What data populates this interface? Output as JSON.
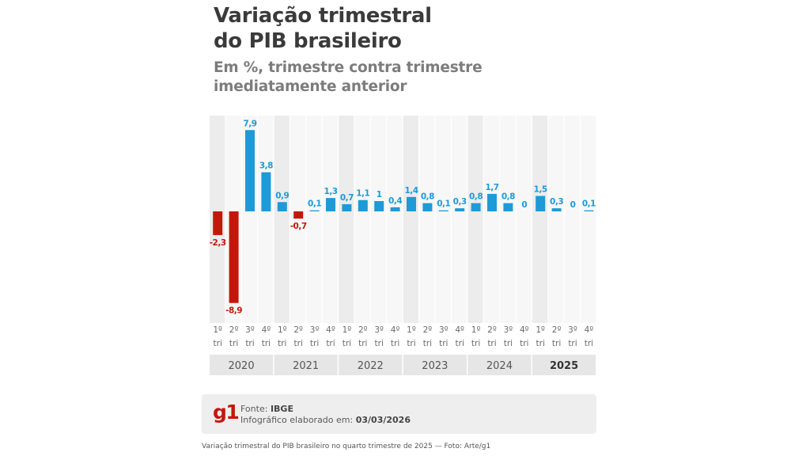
{
  "title_lines": [
    "Variação trimestral",
    "do PIB brasileiro"
  ],
  "subtitle_lines": [
    "Em %, trimestre contra trimestre",
    "imediatamente anterior"
  ],
  "colors": {
    "positive": "#1e9ad6",
    "negative": "#c4170c",
    "title": "#3a3a3a",
    "subtitle": "#7c7c7c"
  },
  "chart_data": {
    "type": "bar",
    "title": "Variação trimestral do PIB brasileiro",
    "subtitle": "Em %, trimestre contra trimestre imediatamente anterior",
    "quarter_labels": [
      "1º tri",
      "2º tri",
      "3º tri",
      "4º tri"
    ],
    "years": [
      "2020",
      "2021",
      "2022",
      "2023",
      "2024",
      "2025"
    ],
    "highlight_year": "2025",
    "categories": [
      "1º tri 2020",
      "2º tri 2020",
      "3º tri 2020",
      "4º tri 2020",
      "1º tri 2021",
      "2º tri 2021",
      "3º tri 2021",
      "4º tri 2021",
      "1º tri 2022",
      "2º tri 2022",
      "3º tri 2022",
      "4º tri 2022",
      "1º tri 2023",
      "2º tri 2023",
      "3º tri 2023",
      "4º tri 2023",
      "1º tri 2024",
      "2º tri 2024",
      "3º tri 2024",
      "4º tri 2024",
      "1º tri 2025",
      "2º tri 2025",
      "3º tri 2025",
      "4º tri 2025"
    ],
    "values": [
      -2.3,
      -8.9,
      7.9,
      3.8,
      0.9,
      -0.7,
      0.1,
      1.3,
      0.7,
      1.1,
      1,
      0.4,
      1.4,
      0.8,
      0.1,
      0.3,
      0.8,
      1.7,
      0.8,
      0,
      1.5,
      0.3,
      0,
      0.1
    ],
    "value_labels": [
      "-2,3",
      "-8,9",
      "7,9",
      "3,8",
      "0,9",
      "-0,7",
      "0,1",
      "1,3",
      "0,7",
      "1,1",
      "1",
      "0,4",
      "1,4",
      "0,8",
      "0,1",
      "0,3",
      "0,8",
      "1,7",
      "0,8",
      "0",
      "1,5",
      "0,3",
      "0",
      "0,1"
    ],
    "unit": "%"
  },
  "footer": {
    "logo": "g1",
    "source_label": "Fonte:",
    "source_value": "IBGE",
    "date_label": "Infográfico elaborado em:",
    "date_value": "03/03/2026"
  },
  "caption": "Variação trimestral do PIB brasileiro no quarto trimestre de 2025 — Foto: Arte/g1"
}
